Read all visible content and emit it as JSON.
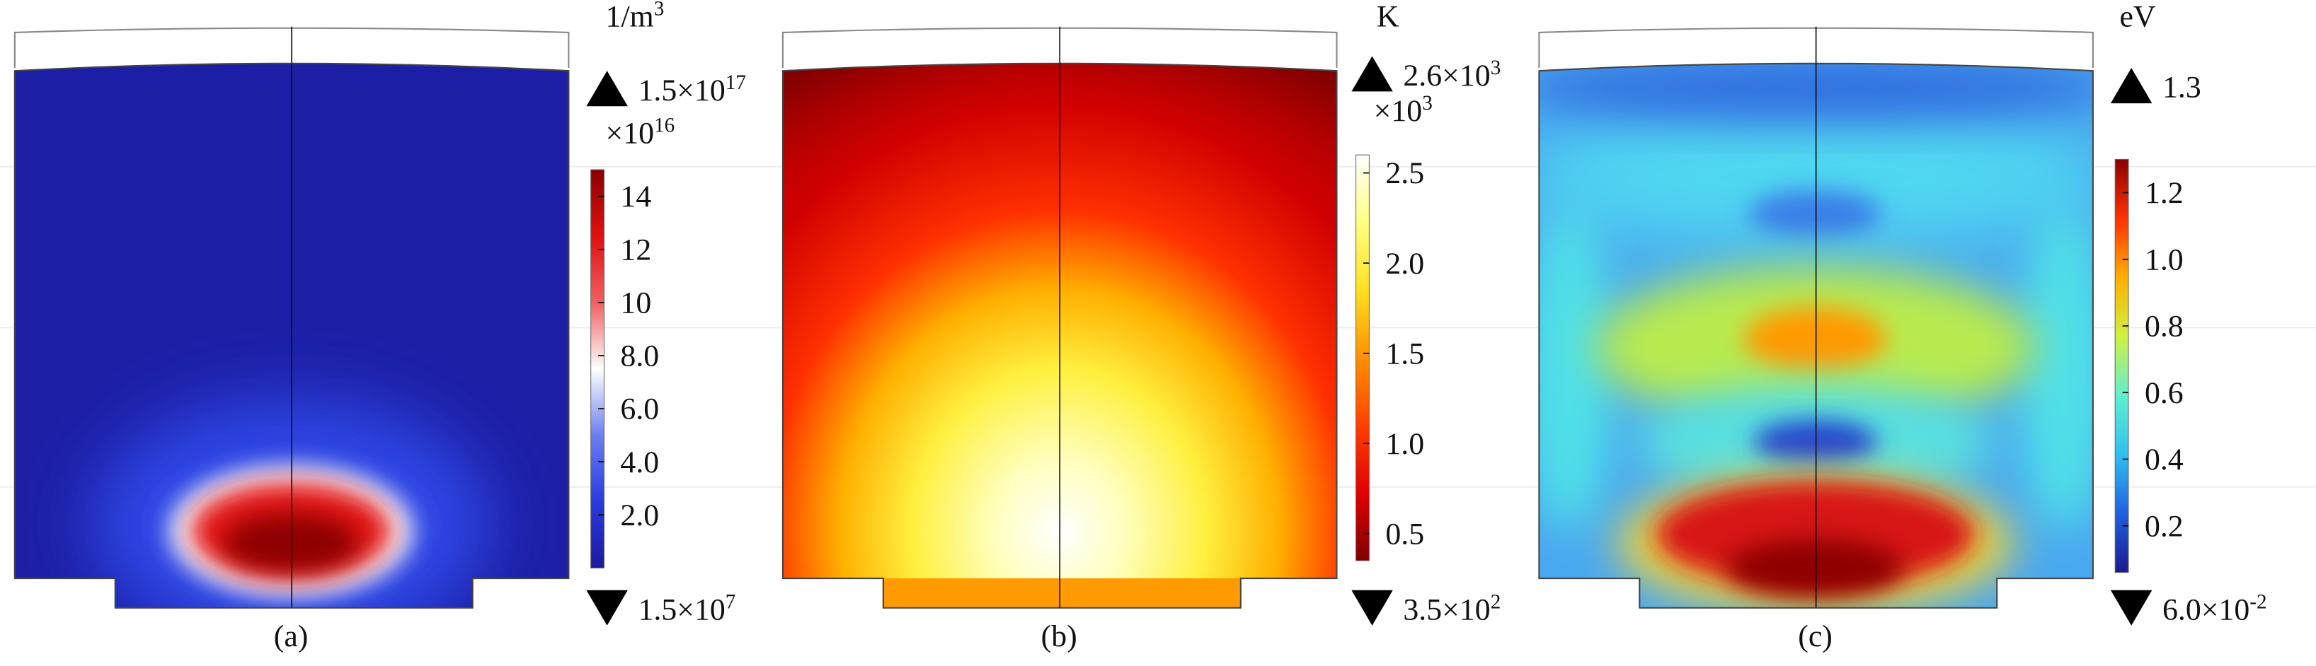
{
  "panels": [
    {
      "caption": "(a)",
      "unit": {
        "text": "1/m",
        "exponent": "3"
      },
      "max_label": {
        "mantissa": "1.5×10",
        "exponent": "17"
      },
      "min_label": {
        "mantissa": "1.5×10",
        "exponent": "7"
      },
      "colorbar": {
        "multiplier": {
          "text": "×10",
          "exponent": "16"
        },
        "lim": [
          0,
          15
        ],
        "ticks": [
          {
            "value": 2,
            "label": "2.0"
          },
          {
            "value": 4,
            "label": "4.0"
          },
          {
            "value": 6,
            "label": "6.0"
          },
          {
            "value": 8,
            "label": "8.0"
          },
          10,
          12,
          14
        ],
        "colormap": [
          "#1a1a9e",
          "#2a3ae0",
          "#6a80f0",
          "#ffffff",
          "#f06060",
          "#e01010",
          "#8b0000"
        ]
      }
    },
    {
      "caption": "(b)",
      "unit": {
        "text": "K"
      },
      "max_label": {
        "mantissa": "2.6×10",
        "exponent": "3"
      },
      "min_label": {
        "mantissa": "3.5×10",
        "exponent": "2"
      },
      "colorbar": {
        "multiplier": {
          "text": "×10",
          "exponent": "3"
        },
        "lim": [
          0.35,
          2.6
        ],
        "ticks": [
          0.5,
          {
            "value": 1,
            "label": "1.0"
          },
          1.5,
          {
            "value": 2,
            "label": "2.0"
          },
          2.5
        ],
        "colormap": [
          "#800000",
          "#e00000",
          "#ff4000",
          "#ff9000",
          "#ffe020",
          "#ffff80",
          "#ffffff"
        ]
      }
    },
    {
      "caption": "(c)",
      "unit": {
        "text": "eV"
      },
      "max_label": {
        "mantissa": "1.3"
      },
      "min_label": {
        "mantissa": "6.0×10",
        "exponent": "-2"
      },
      "colorbar": {
        "lim": [
          0.06,
          1.3
        ],
        "ticks": [
          0.2,
          0.4,
          0.6,
          0.8,
          {
            "value": 1,
            "label": "1.0"
          },
          1.2
        ],
        "colormap": [
          "#1a1a8e",
          "#2060e0",
          "#30c0f0",
          "#60f0d0",
          "#d0f040",
          "#ffb000",
          "#ff3000",
          "#8b0000"
        ]
      }
    }
  ]
}
